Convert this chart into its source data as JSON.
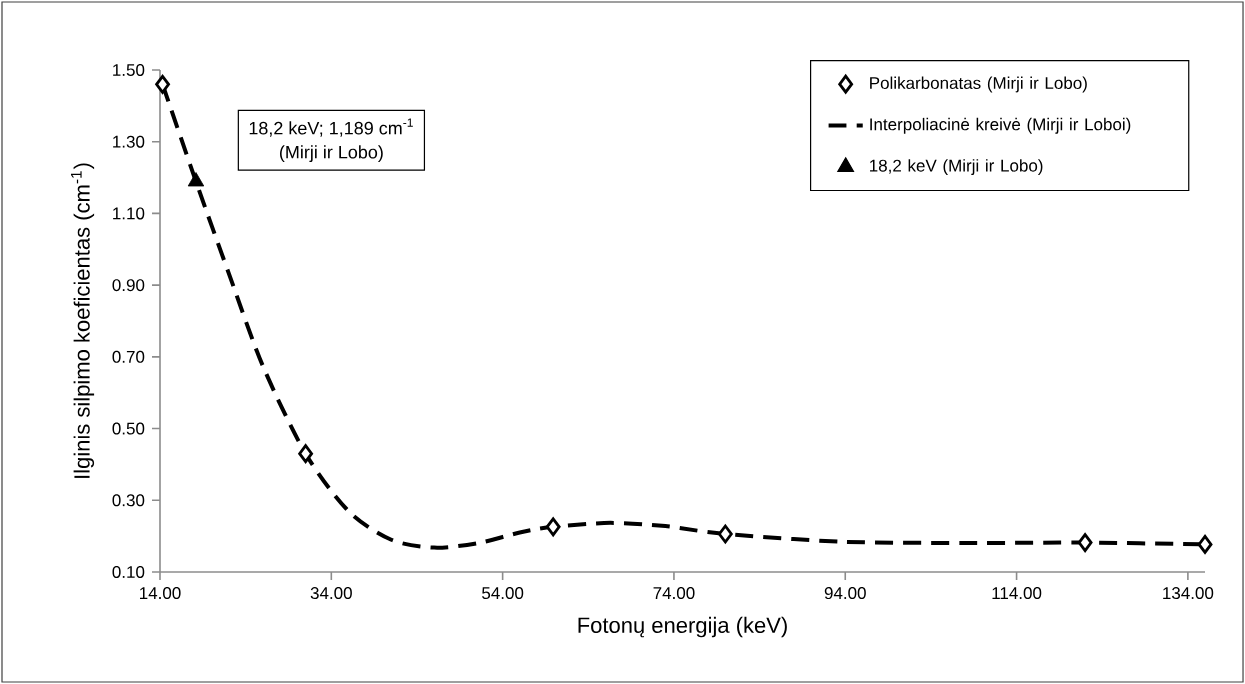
{
  "chart_data": {
    "type": "scatter",
    "xlabel": "Fotonų energija (keV)",
    "ylabel": "Ilginis silpimo koeficientas (cm$^{-1}$)",
    "xlim": [
      14,
      136
    ],
    "ylim": [
      0.1,
      1.5
    ],
    "xticks": [
      {
        "value": 14,
        "label": "14.00"
      },
      {
        "value": 34,
        "label": "34.00"
      },
      {
        "value": 54,
        "label": "54.00"
      },
      {
        "value": 74,
        "label": "74.00"
      },
      {
        "value": 94,
        "label": "94.00"
      },
      {
        "value": 114,
        "label": "114.00"
      },
      {
        "value": 134,
        "label": "134.00"
      }
    ],
    "yticks": [
      {
        "value": 0.1,
        "label": "0.10"
      },
      {
        "value": 0.3,
        "label": "0.30"
      },
      {
        "value": 0.5,
        "label": "0.50"
      },
      {
        "value": 0.7,
        "label": "0.70"
      },
      {
        "value": 0.9,
        "label": "0.90"
      },
      {
        "value": 1.1,
        "label": "1.10"
      },
      {
        "value": 1.3,
        "label": "1.30"
      },
      {
        "value": 1.5,
        "label": "1.50"
      }
    ],
    "grid": false,
    "legend": "top right",
    "series": [
      {
        "name": "Polikarbonatas (Mirji ir Lobo)",
        "type": "scatter",
        "marker": "diamond",
        "color": "#000000",
        "x": [
          14.3,
          31.0,
          59.9,
          80.0,
          122.0,
          136.0
        ],
        "values": [
          1.46,
          0.43,
          0.226,
          0.206,
          0.182,
          0.177
        ]
      },
      {
        "name": "Interpoliacinė kreivė (Mirji ir Loboi)",
        "type": "line",
        "line_style": "dashed",
        "marker": "none",
        "color": "#000000",
        "x": [
          14.3,
          18.2,
          22,
          26,
          31,
          36,
          41,
          46,
          51,
          56,
          59.9,
          66.6,
          73,
          80,
          94,
          110,
          122,
          136
        ],
        "values": [
          1.46,
          1.189,
          0.935,
          0.675,
          0.43,
          0.27,
          0.19,
          0.168,
          0.18,
          0.21,
          0.226,
          0.237,
          0.228,
          0.206,
          0.184,
          0.181,
          0.182,
          0.177
        ]
      },
      {
        "name": "18,2 keV (Mirji ir Lobo)",
        "type": "scatter",
        "marker": "triangle",
        "color": "#000000",
        "x": [
          18.2
        ],
        "values": [
          1.189
        ]
      }
    ],
    "annotations": [
      "18,2 keV; 1,189 cm$^{-1}$",
      "(Mirji ir Lobo)"
    ]
  }
}
